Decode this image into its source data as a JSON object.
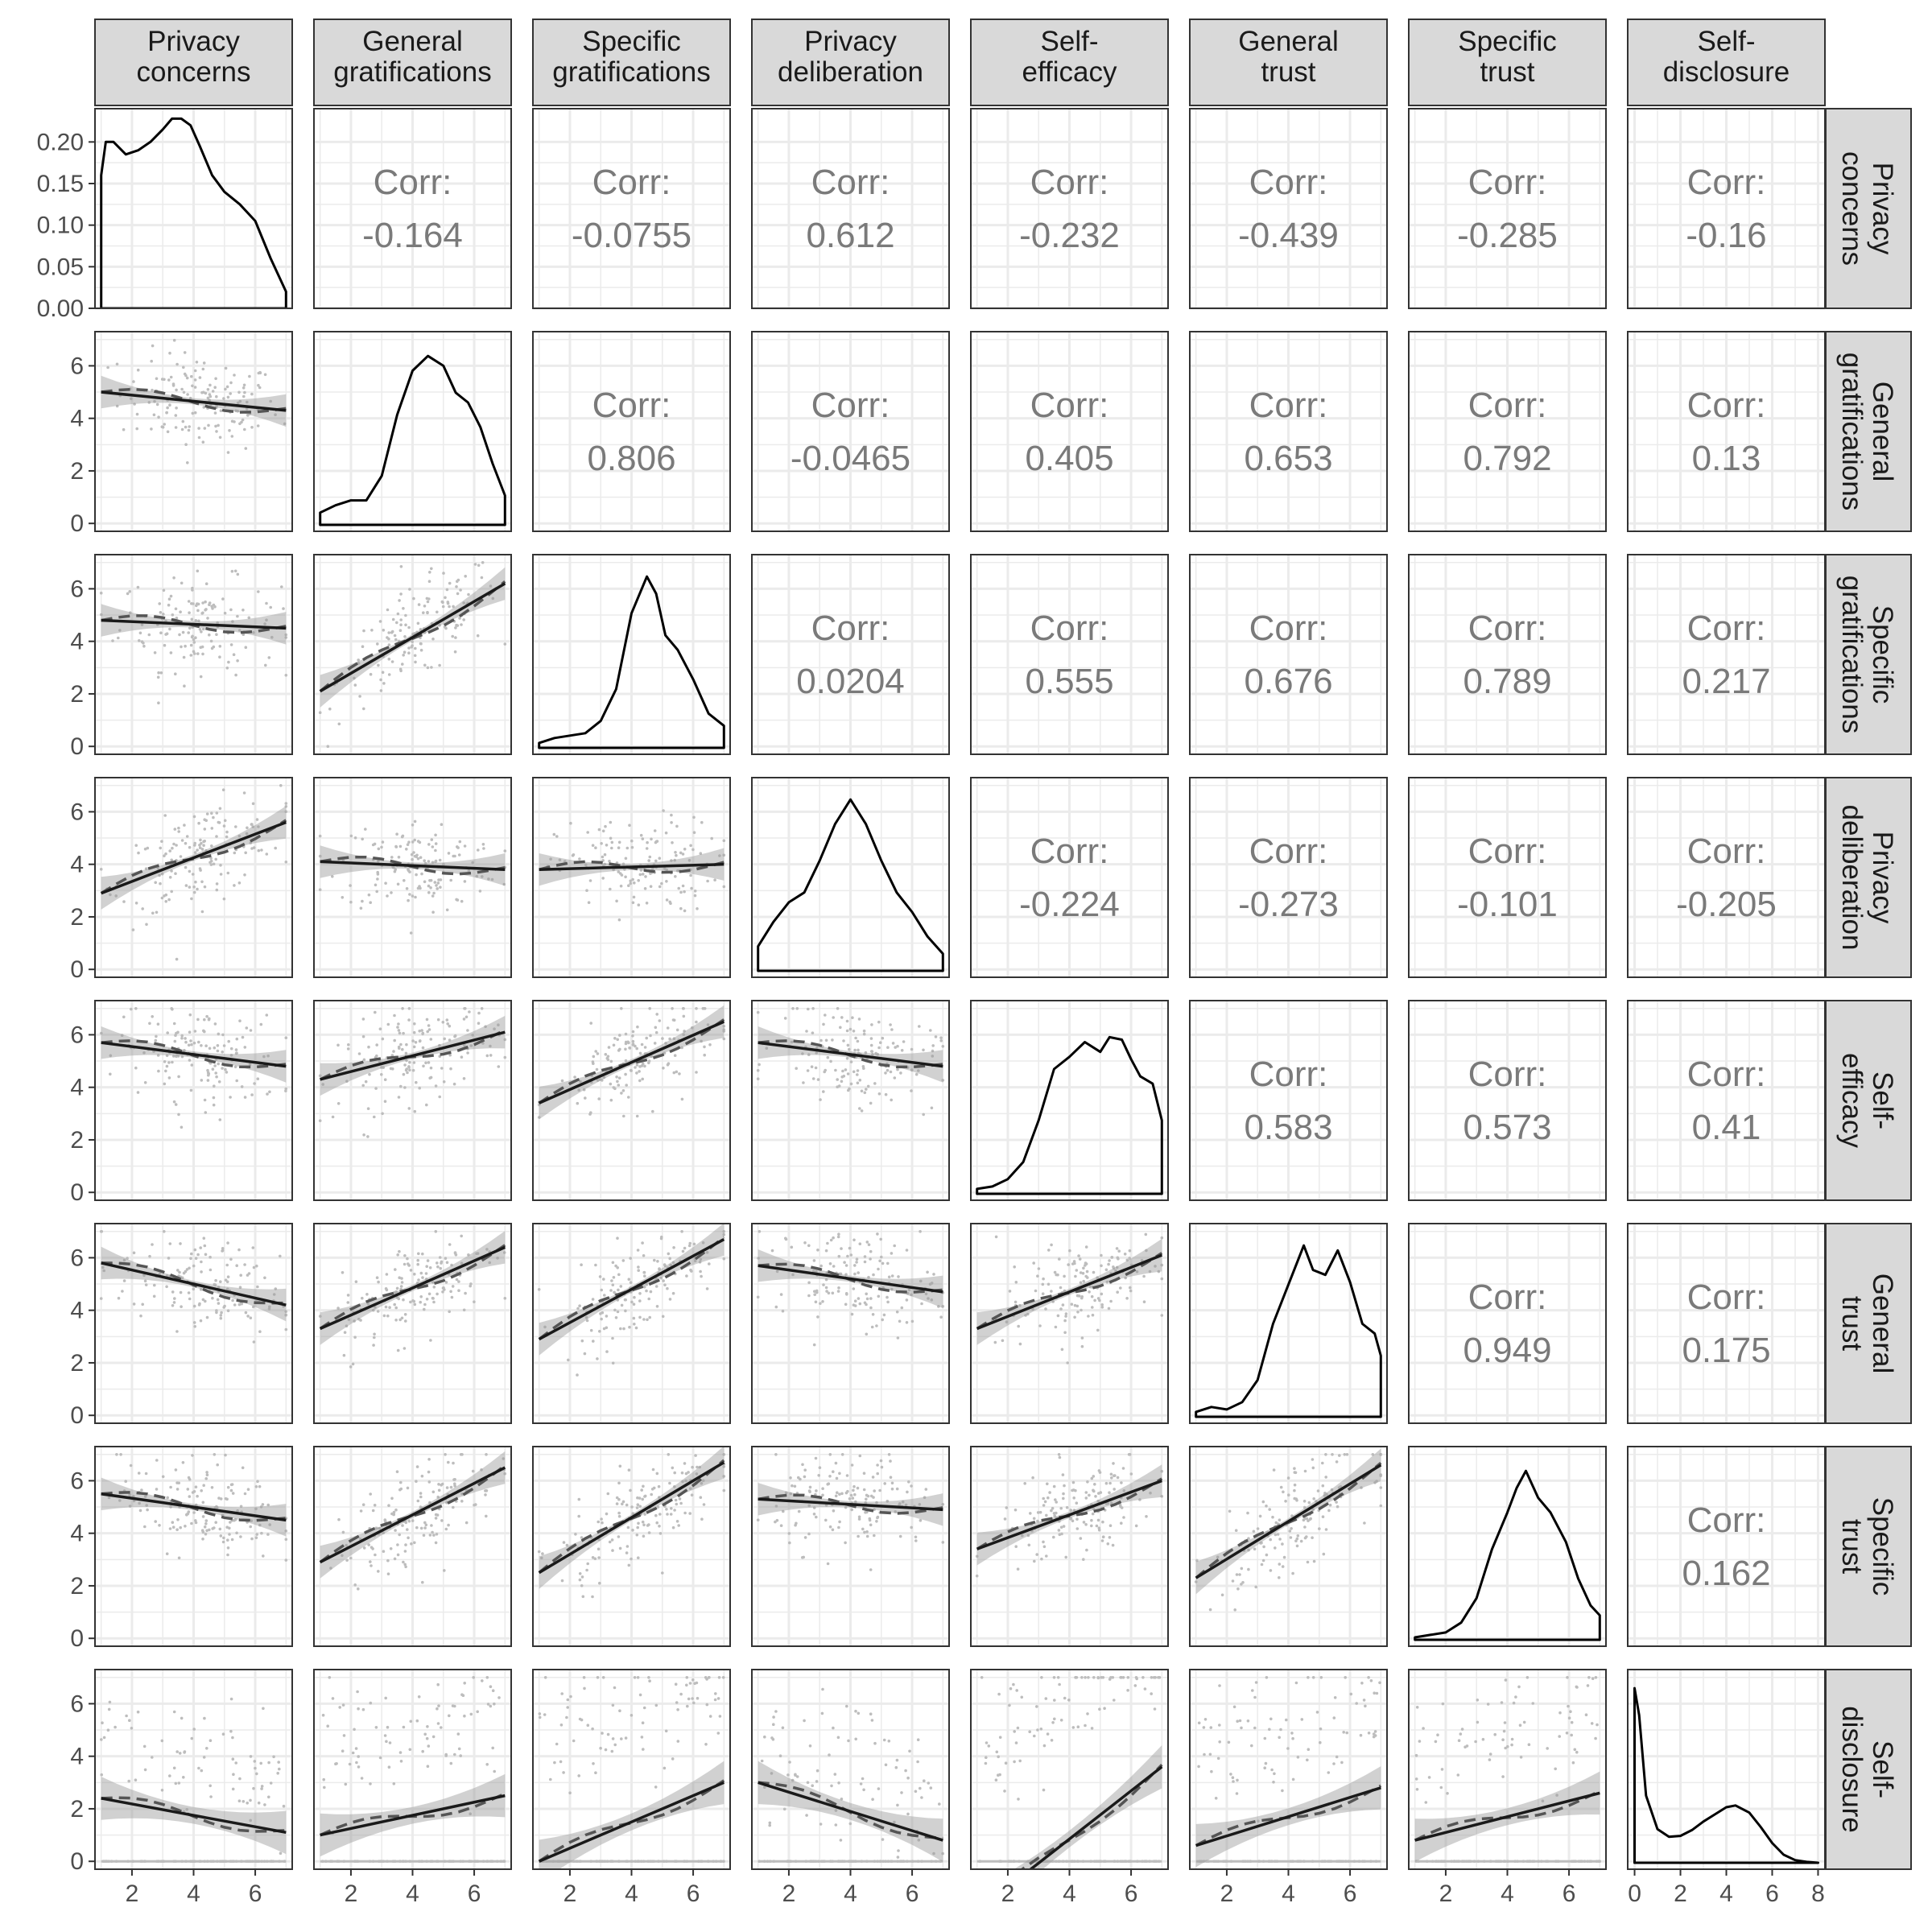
{
  "chart_data": {
    "type": "scatter-matrix",
    "variables": [
      {
        "name": "Privacy concerns",
        "lines": [
          "Privacy",
          "concerns"
        ],
        "range": [
          0.8,
          7.2
        ],
        "ticks": [
          2,
          4,
          6
        ]
      },
      {
        "name": "General gratifications",
        "lines": [
          "General",
          "gratifications"
        ],
        "range": [
          0.8,
          7.2
        ],
        "ticks": [
          2,
          4,
          6
        ]
      },
      {
        "name": "Specific gratifications",
        "lines": [
          "Specific",
          "gratifications"
        ],
        "range": [
          0.8,
          7.2
        ],
        "ticks": [
          2,
          4,
          6
        ]
      },
      {
        "name": "Privacy deliberation",
        "lines": [
          "Privacy",
          "deliberation"
        ],
        "range": [
          0.8,
          7.2
        ],
        "ticks": [
          2,
          4,
          6
        ]
      },
      {
        "name": "Self-efficacy",
        "lines": [
          "Self-",
          "efficacy"
        ],
        "range": [
          0.8,
          7.2
        ],
        "ticks": [
          2,
          4,
          6
        ]
      },
      {
        "name": "General trust",
        "lines": [
          "General",
          "trust"
        ],
        "range": [
          0.8,
          7.2
        ],
        "ticks": [
          2,
          4,
          6
        ]
      },
      {
        "name": "Specific trust",
        "lines": [
          "Specific",
          "trust"
        ],
        "range": [
          0.8,
          7.2
        ],
        "ticks": [
          2,
          4,
          6
        ]
      },
      {
        "name": "Self-disclosure",
        "lines": [
          "Self-",
          "disclosure"
        ],
        "range": [
          -0.3,
          8.3
        ],
        "ticks": [
          0,
          2,
          4,
          6,
          8
        ]
      }
    ],
    "y_axis": {
      "density_row_ticks": [
        0.0,
        0.05,
        0.1,
        0.15,
        0.2
      ],
      "density_row_tick_labels": [
        "0.00",
        "0.05",
        "0.10",
        "0.15",
        "0.20"
      ],
      "density_row_range": [
        0,
        0.24
      ],
      "scatter_ticks": [
        0,
        2,
        4,
        6
      ],
      "scatter_range": [
        -0.3,
        7.3
      ]
    },
    "correlation_label": "Corr:",
    "correlations": [
      {
        "row": 0,
        "col": 1,
        "value": "-0.164"
      },
      {
        "row": 0,
        "col": 2,
        "value": "-0.0755"
      },
      {
        "row": 0,
        "col": 3,
        "value": "0.612"
      },
      {
        "row": 0,
        "col": 4,
        "value": "-0.232"
      },
      {
        "row": 0,
        "col": 5,
        "value": "-0.439"
      },
      {
        "row": 0,
        "col": 6,
        "value": "-0.285"
      },
      {
        "row": 0,
        "col": 7,
        "value": "-0.16"
      },
      {
        "row": 1,
        "col": 2,
        "value": "0.806"
      },
      {
        "row": 1,
        "col": 3,
        "value": "-0.0465"
      },
      {
        "row": 1,
        "col": 4,
        "value": "0.405"
      },
      {
        "row": 1,
        "col": 5,
        "value": "0.653"
      },
      {
        "row": 1,
        "col": 6,
        "value": "0.792"
      },
      {
        "row": 1,
        "col": 7,
        "value": "0.13"
      },
      {
        "row": 2,
        "col": 3,
        "value": "0.0204"
      },
      {
        "row": 2,
        "col": 4,
        "value": "0.555"
      },
      {
        "row": 2,
        "col": 5,
        "value": "0.676"
      },
      {
        "row": 2,
        "col": 6,
        "value": "0.789"
      },
      {
        "row": 2,
        "col": 7,
        "value": "0.217"
      },
      {
        "row": 3,
        "col": 4,
        "value": "-0.224"
      },
      {
        "row": 3,
        "col": 5,
        "value": "-0.273"
      },
      {
        "row": 3,
        "col": 6,
        "value": "-0.101"
      },
      {
        "row": 3,
        "col": 7,
        "value": "-0.205"
      },
      {
        "row": 4,
        "col": 5,
        "value": "0.583"
      },
      {
        "row": 4,
        "col": 6,
        "value": "0.573"
      },
      {
        "row": 4,
        "col": 7,
        "value": "0.41"
      },
      {
        "row": 5,
        "col": 6,
        "value": "0.949"
      },
      {
        "row": 5,
        "col": 7,
        "value": "0.175"
      },
      {
        "row": 6,
        "col": 7,
        "value": "0.162"
      }
    ],
    "densities": [
      {
        "var": 0,
        "ymax": 0.24,
        "points": [
          [
            1.0,
            0.0
          ],
          [
            1.0,
            0.16
          ],
          [
            1.15,
            0.2
          ],
          [
            1.4,
            0.2
          ],
          [
            1.8,
            0.185
          ],
          [
            2.2,
            0.19
          ],
          [
            2.6,
            0.2
          ],
          [
            3.0,
            0.215
          ],
          [
            3.3,
            0.228
          ],
          [
            3.6,
            0.228
          ],
          [
            3.9,
            0.22
          ],
          [
            4.2,
            0.195
          ],
          [
            4.6,
            0.16
          ],
          [
            5.0,
            0.14
          ],
          [
            5.5,
            0.125
          ],
          [
            6.0,
            0.105
          ],
          [
            6.5,
            0.06
          ],
          [
            7.0,
            0.02
          ],
          [
            7.0,
            0.0
          ]
        ]
      },
      {
        "var": 1,
        "ymax": 0.075,
        "points": [
          [
            1.0,
            0.0
          ],
          [
            1.0,
            0.005
          ],
          [
            1.5,
            0.008
          ],
          [
            2.0,
            0.01
          ],
          [
            2.5,
            0.01
          ],
          [
            3.0,
            0.02
          ],
          [
            3.5,
            0.045
          ],
          [
            4.0,
            0.063
          ],
          [
            4.5,
            0.069
          ],
          [
            5.0,
            0.065
          ],
          [
            5.4,
            0.054
          ],
          [
            5.8,
            0.05
          ],
          [
            6.2,
            0.04
          ],
          [
            6.6,
            0.025
          ],
          [
            7.0,
            0.012
          ],
          [
            7.0,
            0.0
          ]
        ]
      },
      {
        "var": 2,
        "ymax": 0.075,
        "points": [
          [
            1.0,
            0.0
          ],
          [
            1.0,
            0.002
          ],
          [
            1.5,
            0.004
          ],
          [
            2.0,
            0.005
          ],
          [
            2.5,
            0.006
          ],
          [
            3.0,
            0.011
          ],
          [
            3.5,
            0.024
          ],
          [
            4.0,
            0.055
          ],
          [
            4.5,
            0.07
          ],
          [
            4.8,
            0.063
          ],
          [
            5.1,
            0.046
          ],
          [
            5.5,
            0.04
          ],
          [
            6.0,
            0.028
          ],
          [
            6.5,
            0.014
          ],
          [
            7.0,
            0.009
          ],
          [
            7.0,
            0.0
          ]
        ]
      },
      {
        "var": 3,
        "ymax": 0.075,
        "points": [
          [
            1.0,
            0.0
          ],
          [
            1.0,
            0.01
          ],
          [
            1.5,
            0.02
          ],
          [
            2.0,
            0.028
          ],
          [
            2.5,
            0.032
          ],
          [
            3.0,
            0.045
          ],
          [
            3.5,
            0.06
          ],
          [
            4.0,
            0.07
          ],
          [
            4.5,
            0.06
          ],
          [
            5.0,
            0.045
          ],
          [
            5.5,
            0.032
          ],
          [
            6.0,
            0.024
          ],
          [
            6.5,
            0.014
          ],
          [
            7.0,
            0.007
          ],
          [
            7.0,
            0.0
          ]
        ]
      },
      {
        "var": 4,
        "ymax": 0.075,
        "points": [
          [
            1.0,
            0.0
          ],
          [
            1.0,
            0.002
          ],
          [
            1.5,
            0.003
          ],
          [
            2.0,
            0.006
          ],
          [
            2.5,
            0.013
          ],
          [
            3.0,
            0.03
          ],
          [
            3.5,
            0.051
          ],
          [
            4.0,
            0.056
          ],
          [
            4.5,
            0.062
          ],
          [
            5.0,
            0.058
          ],
          [
            5.3,
            0.064
          ],
          [
            5.7,
            0.063
          ],
          [
            6.0,
            0.055
          ],
          [
            6.3,
            0.048
          ],
          [
            6.7,
            0.045
          ],
          [
            7.0,
            0.03
          ],
          [
            7.0,
            0.0
          ]
        ]
      },
      {
        "var": 5,
        "ymax": 0.075,
        "points": [
          [
            1.0,
            0.0
          ],
          [
            1.0,
            0.002
          ],
          [
            1.5,
            0.004
          ],
          [
            2.0,
            0.003
          ],
          [
            2.5,
            0.006
          ],
          [
            3.0,
            0.015
          ],
          [
            3.5,
            0.038
          ],
          [
            4.0,
            0.054
          ],
          [
            4.5,
            0.07
          ],
          [
            4.8,
            0.06
          ],
          [
            5.2,
            0.058
          ],
          [
            5.6,
            0.068
          ],
          [
            6.0,
            0.055
          ],
          [
            6.4,
            0.038
          ],
          [
            6.8,
            0.034
          ],
          [
            7.0,
            0.025
          ],
          [
            7.0,
            0.0
          ]
        ]
      },
      {
        "var": 6,
        "ymax": 0.075,
        "points": [
          [
            1.0,
            0.0
          ],
          [
            1.0,
            0.001
          ],
          [
            1.5,
            0.002
          ],
          [
            2.0,
            0.003
          ],
          [
            2.5,
            0.007
          ],
          [
            3.0,
            0.017
          ],
          [
            3.5,
            0.037
          ],
          [
            4.0,
            0.052
          ],
          [
            4.3,
            0.062
          ],
          [
            4.6,
            0.069
          ],
          [
            5.0,
            0.058
          ],
          [
            5.4,
            0.052
          ],
          [
            5.9,
            0.04
          ],
          [
            6.3,
            0.025
          ],
          [
            6.7,
            0.014
          ],
          [
            7.0,
            0.01
          ],
          [
            7.0,
            0.0
          ]
        ]
      },
      {
        "var": 7,
        "ymax": 0.41,
        "points": [
          [
            0.0,
            0.0
          ],
          [
            0.0,
            0.39
          ],
          [
            0.2,
            0.33
          ],
          [
            0.5,
            0.15
          ],
          [
            1.0,
            0.075
          ],
          [
            1.5,
            0.058
          ],
          [
            2.0,
            0.06
          ],
          [
            2.5,
            0.073
          ],
          [
            3.0,
            0.092
          ],
          [
            3.5,
            0.108
          ],
          [
            4.0,
            0.124
          ],
          [
            4.4,
            0.128
          ],
          [
            5.0,
            0.112
          ],
          [
            5.5,
            0.08
          ],
          [
            6.0,
            0.044
          ],
          [
            6.5,
            0.018
          ],
          [
            7.0,
            0.006
          ],
          [
            7.5,
            0.002
          ],
          [
            8.0,
            0.0
          ]
        ]
      }
    ],
    "fits": [
      {
        "row": 1,
        "col": 0,
        "y_at_1": 5.0,
        "y_at_7": 4.3
      },
      {
        "row": 2,
        "col": 0,
        "y_at_1": 4.8,
        "y_at_7": 4.5
      },
      {
        "row": 2,
        "col": 1,
        "y_at_1": 2.1,
        "y_at_7": 6.2
      },
      {
        "row": 3,
        "col": 0,
        "y_at_1": 2.9,
        "y_at_7": 5.6
      },
      {
        "row": 3,
        "col": 1,
        "y_at_1": 4.1,
        "y_at_7": 3.8
      },
      {
        "row": 3,
        "col": 2,
        "y_at_1": 3.8,
        "y_at_7": 4.0
      },
      {
        "row": 4,
        "col": 0,
        "y_at_1": 5.7,
        "y_at_7": 4.8
      },
      {
        "row": 4,
        "col": 1,
        "y_at_1": 4.3,
        "y_at_7": 6.1
      },
      {
        "row": 4,
        "col": 2,
        "y_at_1": 3.4,
        "y_at_7": 6.5
      },
      {
        "row": 4,
        "col": 3,
        "y_at_1": 5.7,
        "y_at_7": 4.8
      },
      {
        "row": 5,
        "col": 0,
        "y_at_1": 5.8,
        "y_at_7": 4.2
      },
      {
        "row": 5,
        "col": 1,
        "y_at_1": 3.3,
        "y_at_7": 6.4
      },
      {
        "row": 5,
        "col": 2,
        "y_at_1": 2.9,
        "y_at_7": 6.7
      },
      {
        "row": 5,
        "col": 3,
        "y_at_1": 5.7,
        "y_at_7": 4.7
      },
      {
        "row": 5,
        "col": 4,
        "y_at_1": 3.3,
        "y_at_7": 6.1
      },
      {
        "row": 6,
        "col": 0,
        "y_at_1": 5.5,
        "y_at_7": 4.5
      },
      {
        "row": 6,
        "col": 1,
        "y_at_1": 2.9,
        "y_at_7": 6.5
      },
      {
        "row": 6,
        "col": 2,
        "y_at_1": 2.5,
        "y_at_7": 6.7
      },
      {
        "row": 6,
        "col": 3,
        "y_at_1": 5.3,
        "y_at_7": 4.9
      },
      {
        "row": 6,
        "col": 4,
        "y_at_1": 3.4,
        "y_at_7": 6.0
      },
      {
        "row": 6,
        "col": 5,
        "y_at_1": 2.3,
        "y_at_7": 6.6
      },
      {
        "row": 7,
        "col": 0,
        "y_at_1": 2.4,
        "y_at_7": 1.1
      },
      {
        "row": 7,
        "col": 1,
        "y_at_1": 1.0,
        "y_at_7": 2.5
      },
      {
        "row": 7,
        "col": 2,
        "y_at_1": 0.0,
        "y_at_7": 3.0
      },
      {
        "row": 7,
        "col": 3,
        "y_at_1": 3.0,
        "y_at_7": 0.8
      },
      {
        "row": 7,
        "col": 4,
        "y_at_1": -1.9,
        "y_at_7": 3.6
      },
      {
        "row": 7,
        "col": 5,
        "y_at_1": 0.6,
        "y_at_7": 2.8
      },
      {
        "row": 7,
        "col": 6,
        "y_at_1": 0.8,
        "y_at_7": 2.6
      }
    ],
    "colors": {
      "strip_fill": "#d9d9d9",
      "panel_border": "#333333",
      "grid": "#ebebeb",
      "points": "#bdbdbd",
      "fit_line": "#1a1a1a",
      "loess_line": "#555555",
      "band": "#999999",
      "corr_text": "#7a7a7a",
      "density_line": "#000000"
    },
    "grid": true
  }
}
